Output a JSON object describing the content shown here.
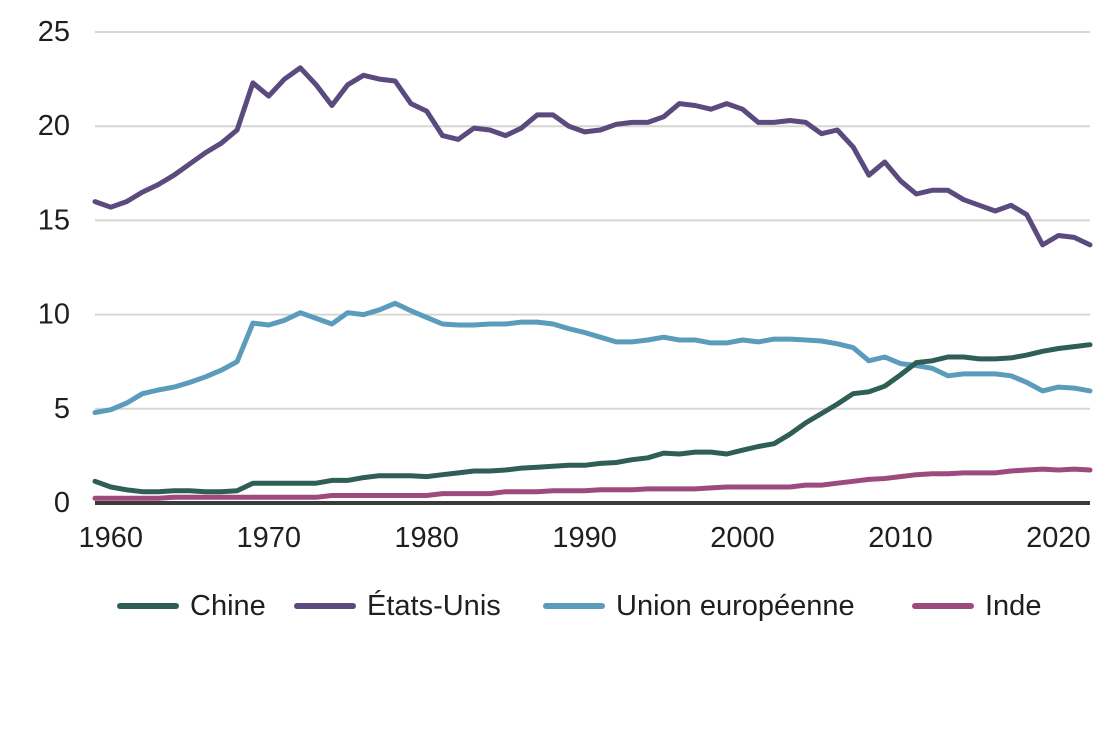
{
  "chart_data": {
    "type": "line",
    "title": "",
    "xlabel": "",
    "ylabel": "",
    "xlim": [
      1959,
      2022
    ],
    "ylim": [
      0,
      25
    ],
    "grid": true,
    "legend_position": "bottom",
    "x_ticks": [
      1960,
      1970,
      1980,
      1990,
      2000,
      2010,
      2020
    ],
    "y_ticks": [
      0,
      5,
      10,
      15,
      20,
      25
    ],
    "x_tick_labels": [
      "1960",
      "1970",
      "1980",
      "1990",
      "2000",
      "2010",
      "2020"
    ],
    "y_tick_labels": [
      "0",
      "5",
      "10",
      "15",
      "20",
      "25"
    ],
    "x": [
      1959,
      1960,
      1961,
      1962,
      1963,
      1964,
      1965,
      1966,
      1967,
      1968,
      1969,
      1970,
      1971,
      1972,
      1973,
      1974,
      1975,
      1976,
      1977,
      1978,
      1979,
      1980,
      1981,
      1982,
      1983,
      1984,
      1985,
      1986,
      1987,
      1988,
      1989,
      1990,
      1991,
      1992,
      1993,
      1994,
      1995,
      1996,
      1997,
      1998,
      1999,
      2000,
      2001,
      2002,
      2003,
      2004,
      2005,
      2006,
      2007,
      2008,
      2009,
      2010,
      2011,
      2012,
      2013,
      2014,
      2015,
      2016,
      2017,
      2018,
      2019,
      2020,
      2021,
      2022
    ],
    "series": [
      {
        "name": "Chine",
        "color": "#2e5e55",
        "values": [
          1.15,
          0.85,
          0.7,
          0.6,
          0.6,
          0.65,
          0.65,
          0.6,
          0.6,
          0.65,
          1.05,
          1.05,
          1.05,
          1.05,
          1.05,
          1.2,
          1.2,
          1.35,
          1.45,
          1.45,
          1.45,
          1.4,
          1.5,
          1.6,
          1.7,
          1.7,
          1.75,
          1.85,
          1.9,
          1.95,
          2.0,
          2.0,
          2.1,
          2.15,
          2.3,
          2.4,
          2.65,
          2.6,
          2.7,
          2.7,
          2.6,
          2.8,
          3.0,
          3.15,
          3.65,
          4.25,
          4.75,
          5.25,
          5.8,
          5.9,
          6.2,
          6.8,
          7.45,
          7.55,
          7.75,
          7.75,
          7.65,
          7.65,
          7.7,
          7.85,
          8.05,
          8.2,
          8.3,
          8.4
        ]
      },
      {
        "name": "États-Unis",
        "color": "#5a4a7e",
        "values": [
          16.0,
          15.7,
          16.0,
          16.5,
          16.9,
          17.4,
          18.0,
          18.6,
          19.1,
          19.8,
          22.3,
          21.6,
          22.5,
          23.1,
          22.2,
          21.1,
          22.2,
          22.7,
          22.5,
          22.4,
          21.2,
          20.8,
          19.5,
          19.3,
          19.9,
          19.8,
          19.5,
          19.9,
          20.6,
          20.6,
          20.0,
          19.7,
          19.8,
          20.1,
          20.2,
          20.2,
          20.5,
          21.2,
          21.1,
          20.9,
          21.2,
          20.9,
          20.2,
          20.2,
          20.3,
          20.2,
          19.6,
          19.8,
          18.9,
          17.4,
          18.1,
          17.1,
          16.4,
          16.6,
          16.6,
          16.1,
          15.8,
          15.5,
          15.8,
          15.3,
          13.7,
          14.2,
          14.1,
          13.7
        ]
      },
      {
        "name": "Union européenne",
        "color": "#5b9bbb",
        "values": [
          4.8,
          4.95,
          5.3,
          5.8,
          6.0,
          6.15,
          6.4,
          6.7,
          7.05,
          7.5,
          9.55,
          9.45,
          9.7,
          10.1,
          9.8,
          9.5,
          10.1,
          10.0,
          10.25,
          10.6,
          10.2,
          9.85,
          9.5,
          9.45,
          9.45,
          9.5,
          9.5,
          9.6,
          9.6,
          9.5,
          9.25,
          9.05,
          8.8,
          8.55,
          8.55,
          8.65,
          8.8,
          8.65,
          8.65,
          8.5,
          8.5,
          8.65,
          8.55,
          8.7,
          8.7,
          8.65,
          8.6,
          8.45,
          8.25,
          7.55,
          7.75,
          7.4,
          7.3,
          7.15,
          6.75,
          6.85,
          6.85,
          6.85,
          6.75,
          6.4,
          5.95,
          6.15,
          6.1,
          5.95
        ]
      },
      {
        "name": "Inde",
        "color": "#9e4a7e",
        "values": [
          0.25,
          0.25,
          0.25,
          0.25,
          0.25,
          0.3,
          0.3,
          0.3,
          0.3,
          0.3,
          0.3,
          0.3,
          0.3,
          0.3,
          0.3,
          0.4,
          0.4,
          0.4,
          0.4,
          0.4,
          0.4,
          0.4,
          0.5,
          0.5,
          0.5,
          0.5,
          0.6,
          0.6,
          0.6,
          0.65,
          0.65,
          0.65,
          0.7,
          0.7,
          0.7,
          0.75,
          0.75,
          0.75,
          0.75,
          0.8,
          0.85,
          0.85,
          0.85,
          0.85,
          0.85,
          0.95,
          0.95,
          1.05,
          1.15,
          1.25,
          1.3,
          1.4,
          1.5,
          1.55,
          1.55,
          1.6,
          1.6,
          1.6,
          1.7,
          1.75,
          1.8,
          1.75,
          1.8,
          1.75
        ]
      }
    ],
    "legend": [
      "Chine",
      "États-Unis",
      "Union européenne",
      "Inde"
    ]
  }
}
